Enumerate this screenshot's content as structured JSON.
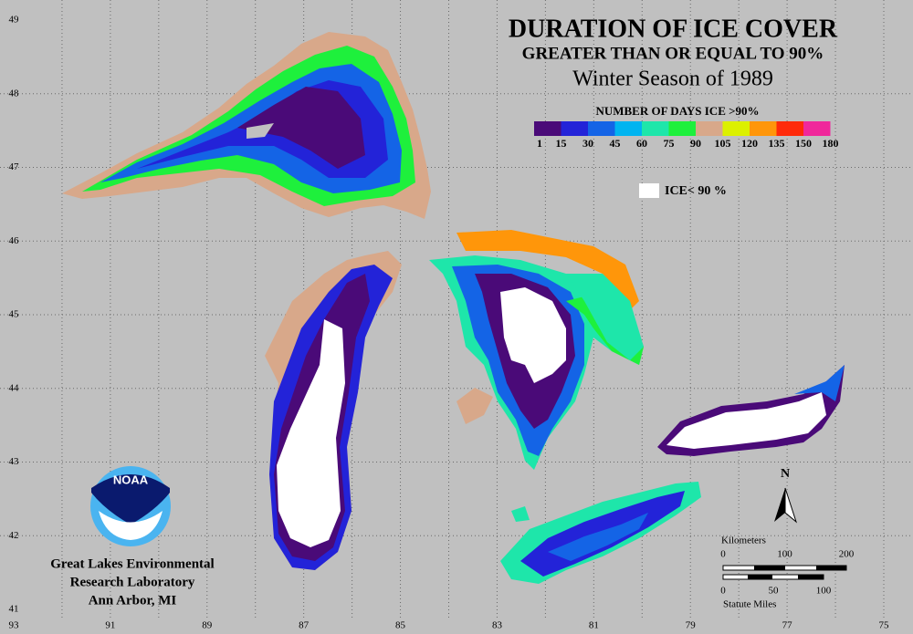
{
  "header": {
    "title": "DURATION OF ICE COVER",
    "subtitle": "GREATER THAN OR EQUAL TO 90%",
    "season": "Winter Season of 1989"
  },
  "legend": {
    "title": "NUMBER OF DAYS ICE >90%",
    "labels": [
      "1",
      "15",
      "30",
      "45",
      "60",
      "75",
      "90",
      "105",
      "120",
      "135",
      "150",
      "180"
    ],
    "colors": [
      "#4a0a78",
      "#2323d8",
      "#1464e6",
      "#00b4f0",
      "#1ee6aa",
      "#1ef03c",
      "#d8a88a",
      "#dcf000",
      "#ff960a",
      "#ff2a0a",
      "#f0289b"
    ],
    "ice_label": "ICE< 90 %"
  },
  "grid": {
    "lat_labels": [
      "49",
      "48",
      "47",
      "46",
      "45",
      "44",
      "43",
      "42",
      "41"
    ],
    "lon_labels": [
      "93",
      "91",
      "89",
      "87",
      "85",
      "83",
      "81",
      "79",
      "77",
      "75"
    ]
  },
  "logo": {
    "text": "NOAA"
  },
  "credit": {
    "lines": [
      "Great Lakes Environmental",
      "Research Laboratory",
      "Ann Arbor, MI"
    ]
  },
  "scale": {
    "north": "N",
    "km_title": "Kilometers",
    "km_labels": [
      "0",
      "100",
      "200"
    ],
    "mi_labels": [
      "0",
      "50",
      "100"
    ],
    "mi_title": "Statute Miles"
  }
}
